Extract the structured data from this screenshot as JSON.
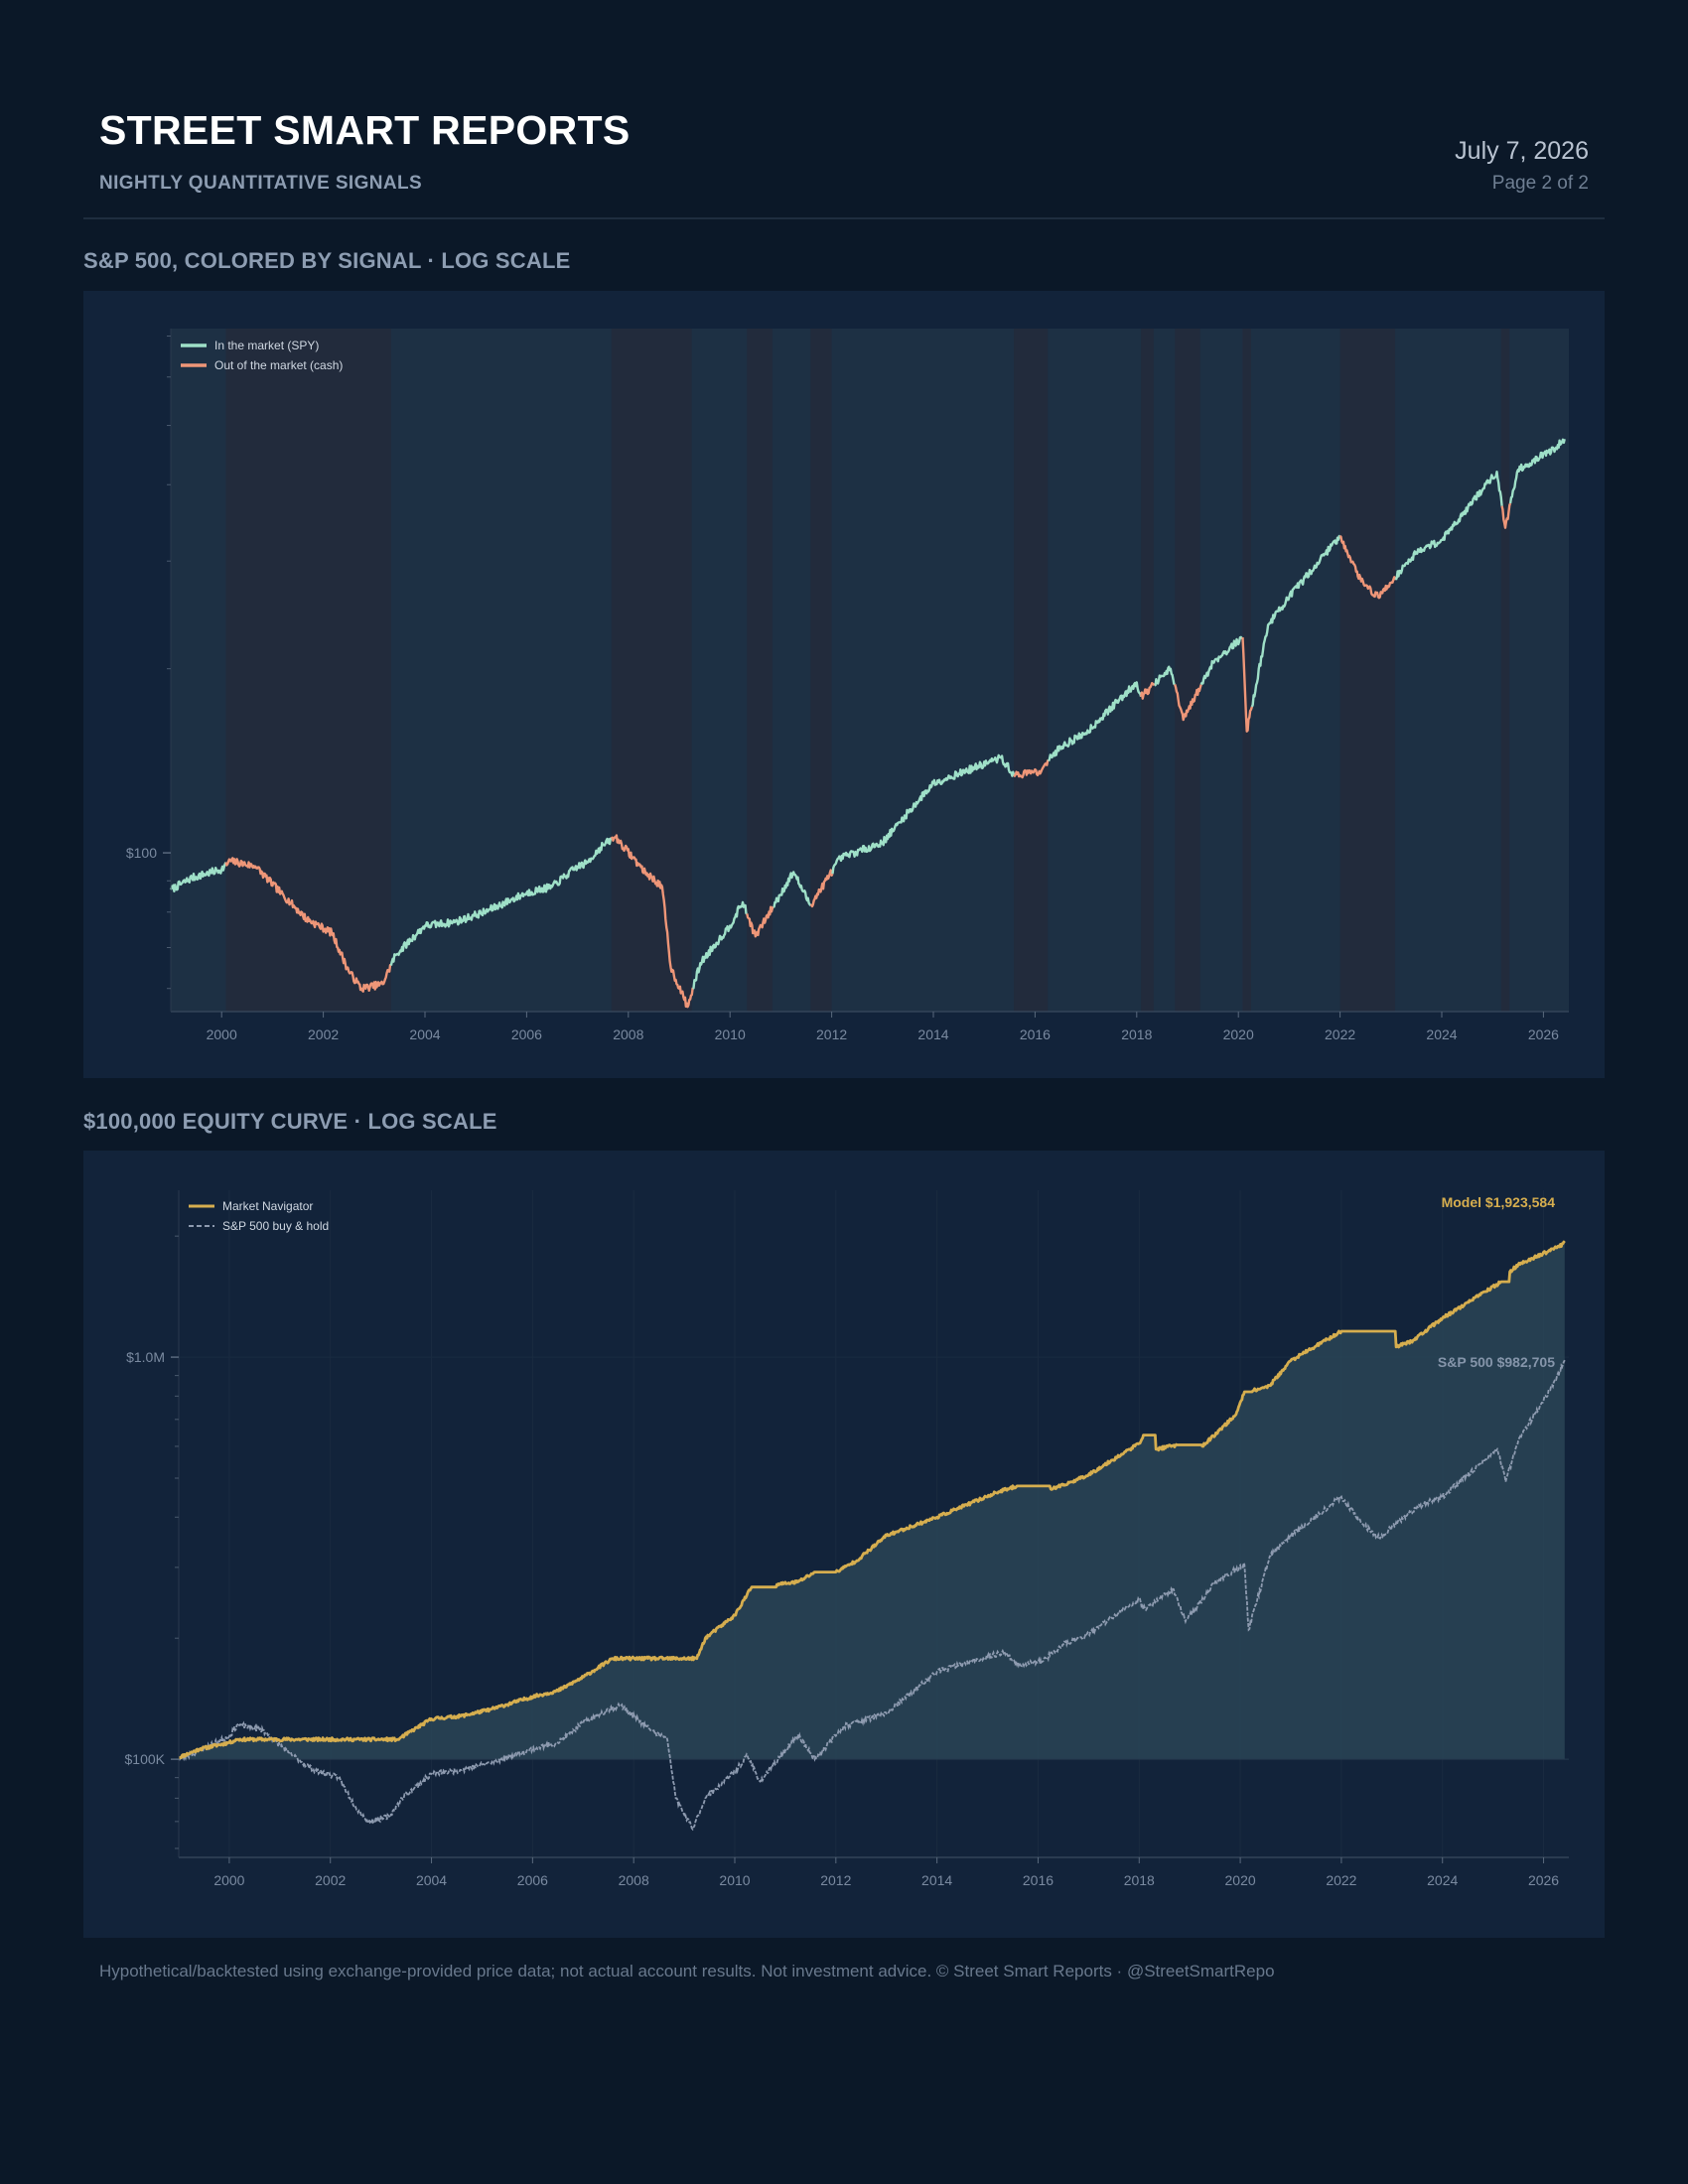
{
  "header": {
    "brand": "STREET SMART REPORTS",
    "subtitle": "NIGHTLY QUANTITATIVE SIGNALS",
    "date": "July 7, 2026",
    "page": "Page 2 of 2"
  },
  "colors": {
    "background": "#0b1828",
    "panel": "#12233a",
    "in_market": "#9fe0c8",
    "out_market": "#ee9678",
    "model": "#d6ae4f",
    "benchmark": "#8e9bb0",
    "text_muted": "#8d9db2"
  },
  "footer": "Hypothetical/backtested using exchange-provided price data; not actual account results. Not investment advice. © Street Smart Reports · @StreetSmartRepo",
  "chart_data": [
    {
      "type": "line",
      "section_title": "S&P 500, COLORED BY SIGNAL · LOG SCALE",
      "y_scale": "log",
      "ylim": [
        55,
        720
      ],
      "xlim": [
        "1999-01",
        "2026-07"
      ],
      "x_tick_labels": [
        "2000",
        "2002",
        "2004",
        "2006",
        "2008",
        "2010",
        "2012",
        "2014",
        "2016",
        "2018",
        "2020",
        "2022",
        "2024",
        "2026"
      ],
      "y_tick_labels": [
        {
          "label": "$100",
          "value": 100
        }
      ],
      "legend": [
        "In the market (SPY)",
        "Out of the market (cash)"
      ],
      "legend_position": "top-left",
      "grid": false,
      "out_of_market_periods": [
        [
          "2000-02",
          "2003-05"
        ],
        [
          "2007-09",
          "2009-04"
        ],
        [
          "2010-05",
          "2010-11"
        ],
        [
          "2011-08",
          "2012-01"
        ],
        [
          "2015-08",
          "2016-04"
        ],
        [
          "2018-02",
          "2018-05"
        ],
        [
          "2018-10",
          "2019-04"
        ],
        [
          "2020-02",
          "2020-04"
        ],
        [
          "2022-01",
          "2023-02"
        ],
        [
          "2025-03",
          "2025-05"
        ]
      ],
      "series": [
        {
          "name": "In the market (SPY)",
          "x": [
            "1999-01",
            "1999-06",
            "2000-01",
            "2000-03",
            "2000-09",
            "2001-03",
            "2001-09",
            "2002-03",
            "2002-07",
            "2002-10",
            "2003-03",
            "2003-06",
            "2004-01",
            "2004-08",
            "2005-03",
            "2006-01",
            "2006-07",
            "2007-01",
            "2007-03",
            "2007-07",
            "2007-10",
            "2008-05",
            "2008-09",
            "2008-11",
            "2009-03",
            "2009-06",
            "2010-01",
            "2010-04",
            "2010-07",
            "2011-04",
            "2011-08",
            "2012-03",
            "2013-01",
            "2014-01",
            "2015-05",
            "2015-08",
            "2016-02",
            "2016-07",
            "2017-01",
            "2018-01",
            "2018-02",
            "2018-09",
            "2018-12",
            "2019-07",
            "2020-02",
            "2020-03",
            "2020-08",
            "2021-01",
            "2022-01",
            "2022-06",
            "2022-10",
            "2023-07",
            "2024-01",
            "2025-02",
            "2025-04",
            "2025-07",
            "2026-04",
            "2026-06"
          ],
          "values": [
            87,
            91,
            94,
            97,
            95,
            86,
            78,
            74,
            64,
            60,
            61,
            68,
            76,
            77,
            80,
            86,
            88,
            95,
            96,
            103,
            106,
            93,
            88,
            65,
            56,
            66,
            76,
            83,
            73,
            93,
            82,
            98,
            104,
            130,
            143,
            134,
            136,
            149,
            157,
            190,
            180,
            200,
            165,
            205,
            225,
            158,
            236,
            262,
            330,
            278,
            262,
            310,
            325,
            420,
            340,
            423,
            460,
            475
          ]
        }
      ]
    },
    {
      "type": "area",
      "section_title": "$100,000 EQUITY CURVE · LOG SCALE",
      "y_scale": "log",
      "ylim": [
        57000,
        2600000
      ],
      "xlim": [
        "1999-01",
        "2026-07"
      ],
      "x_tick_labels": [
        "2000",
        "2002",
        "2004",
        "2006",
        "2008",
        "2010",
        "2012",
        "2014",
        "2016",
        "2018",
        "2020",
        "2022",
        "2024",
        "2026"
      ],
      "y_tick_labels": [
        {
          "label": "$1.0M",
          "value": 1000000
        },
        {
          "label": "$100K",
          "value": 100000
        }
      ],
      "legend": [
        "Market Navigator",
        "S&P 500 buy & hold"
      ],
      "legend_position": "top-left",
      "grid": true,
      "baseline": 100000,
      "annotations": [
        {
          "label": "Model",
          "value": "$1,923,584"
        },
        {
          "label": "S&P 500",
          "value": "$982,705"
        }
      ],
      "series": [
        {
          "name": "Market Navigator",
          "x": [
            "1999-01",
            "1999-06",
            "2000-01",
            "2000-03",
            "2003-05",
            "2004-01",
            "2004-08",
            "2005-03",
            "2006-01",
            "2006-07",
            "2007-01",
            "2007-08",
            "2009-04",
            "2009-06",
            "2010-01",
            "2010-05",
            "2010-11",
            "2011-04",
            "2011-08",
            "2012-01",
            "2012-06",
            "2013-01",
            "2014-01",
            "2015-03",
            "2015-08",
            "2016-04",
            "2016-07",
            "2017-01",
            "2018-01",
            "2018-02",
            "2018-05",
            "2018-10",
            "2019-04",
            "2019-12",
            "2020-02",
            "2020-04",
            "2020-08",
            "2021-01",
            "2022-01",
            "2023-02",
            "2023-06",
            "2024-01",
            "2025-03",
            "2025-05",
            "2025-07",
            "2026-04",
            "2026-06"
          ],
          "values": [
            101000,
            106000,
            110000,
            112000,
            112000,
            126000,
            128000,
            133000,
            143000,
            148000,
            160000,
            178000,
            178000,
            200000,
            228000,
            268000,
            272000,
            276000,
            292000,
            292000,
            312000,
            360000,
            400000,
            460000,
            478000,
            470000,
            480000,
            510000,
            610000,
            640000,
            590000,
            605000,
            600000,
            720000,
            820000,
            825000,
            850000,
            980000,
            1160000,
            1060000,
            1100000,
            1250000,
            1540000,
            1630000,
            1700000,
            1870000,
            1923584
          ]
        },
        {
          "name": "S&P 500 buy & hold",
          "x": [
            "1999-01",
            "1999-06",
            "2000-01",
            "2000-03",
            "2000-09",
            "2001-03",
            "2001-09",
            "2002-03",
            "2002-07",
            "2002-10",
            "2003-03",
            "2003-06",
            "2004-01",
            "2004-08",
            "2005-03",
            "2006-01",
            "2006-07",
            "2007-01",
            "2007-07",
            "2007-10",
            "2008-05",
            "2008-09",
            "2008-11",
            "2009-03",
            "2009-06",
            "2010-01",
            "2010-04",
            "2010-07",
            "2011-04",
            "2011-08",
            "2012-03",
            "2013-01",
            "2014-01",
            "2015-05",
            "2015-08",
            "2016-02",
            "2016-07",
            "2017-01",
            "2018-01",
            "2018-02",
            "2018-09",
            "2018-12",
            "2019-07",
            "2020-02",
            "2020-03",
            "2020-08",
            "2021-01",
            "2022-01",
            "2022-06",
            "2022-10",
            "2023-07",
            "2024-01",
            "2025-02",
            "2025-04",
            "2025-07",
            "2026-04",
            "2026-06"
          ],
          "values": [
            100000,
            105000,
            114000,
            122000,
            118000,
            104000,
            94000,
            90000,
            76000,
            70000,
            72000,
            80000,
            92000,
            94000,
            98000,
            106000,
            110000,
            123000,
            133000,
            136000,
            118000,
            112000,
            80000,
            67000,
            80000,
            93000,
            102000,
            88000,
            115000,
            100000,
            121000,
            130000,
            165000,
            185000,
            172000,
            175000,
            193000,
            205000,
            250000,
            236000,
            265000,
            220000,
            275000,
            305000,
            210000,
            320000,
            360000,
            450000,
            385000,
            355000,
            425000,
            450000,
            590000,
            490000,
            620000,
            880000,
            982705
          ]
        }
      ]
    }
  ]
}
